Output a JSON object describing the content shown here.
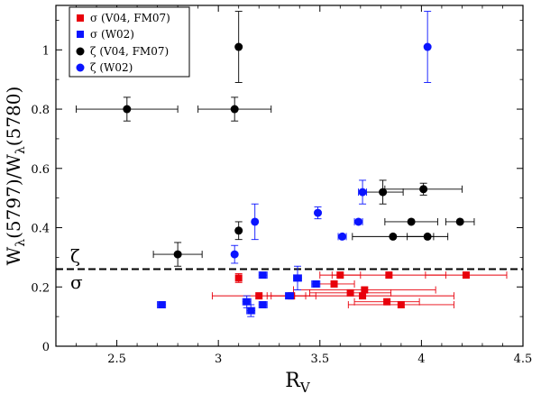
{
  "chart_data": {
    "type": "scatter",
    "xlabel": {
      "main": "R",
      "sub": "V"
    },
    "ylabel": {
      "prefix": "W",
      "sub1": "λ",
      "mid": "(5797)/W",
      "sub2": "λ",
      "suffix": "(5780)"
    },
    "xlim": [
      2.2,
      4.5
    ],
    "ylim": [
      0,
      1.15
    ],
    "xticks": [
      2.5,
      3,
      3.5,
      4,
      4.5
    ],
    "xtick_labels": [
      "2.5",
      "3",
      "3.5",
      "4",
      "4.5"
    ],
    "yticks": [
      0,
      0.2,
      0.4,
      0.6,
      0.8,
      1
    ],
    "ytick_labels": [
      "0",
      "0.2",
      "0.4",
      "0.6",
      "0.8",
      "1"
    ],
    "threshold_line": {
      "y": 0.26,
      "style": "dashed"
    },
    "annotations": [
      {
        "text": "ζ",
        "x": 2.28,
        "y": 0.3
      },
      {
        "text": "σ",
        "x": 2.28,
        "y": 0.21
      }
    ],
    "series": [
      {
        "name": "σ (V04, FM07)",
        "legend_sym": "σ",
        "legend_rest": " (V04, FM07)",
        "marker": "square",
        "color": "#e8000b",
        "points": [
          {
            "x": 3.1,
            "y": 0.23,
            "xerr": 0,
            "yerr": 0.015
          },
          {
            "x": 3.2,
            "y": 0.17,
            "xerr": 0.23,
            "yerr": 0
          },
          {
            "x": 3.36,
            "y": 0.17,
            "xerr": 0.12,
            "yerr": 0
          },
          {
            "x": 3.57,
            "y": 0.21,
            "xerr": 0.1,
            "yerr": 0
          },
          {
            "x": 3.6,
            "y": 0.24,
            "xerr": 0.1,
            "yerr": 0
          },
          {
            "x": 3.65,
            "y": 0.18,
            "xerr": 0.2,
            "yerr": 0
          },
          {
            "x": 3.71,
            "y": 0.17,
            "xerr": 0.45,
            "yerr": 0
          },
          {
            "x": 3.72,
            "y": 0.19,
            "xerr": 0.35,
            "yerr": 0
          },
          {
            "x": 3.84,
            "y": 0.24,
            "xerr": 0.28,
            "yerr": 0
          },
          {
            "x": 3.83,
            "y": 0.15,
            "xerr": 0.16,
            "yerr": 0
          },
          {
            "x": 3.9,
            "y": 0.14,
            "xerr": 0.26,
            "yerr": 0
          },
          {
            "x": 4.22,
            "y": 0.24,
            "xerr": 0.2,
            "yerr": 0
          }
        ]
      },
      {
        "name": "σ (W02)",
        "legend_sym": "σ",
        "legend_rest": " (W02)",
        "marker": "square",
        "color": "#0a14ff",
        "points": [
          {
            "x": 2.72,
            "y": 0.14,
            "xerr": 0.02,
            "yerr": 0
          },
          {
            "x": 3.14,
            "y": 0.15,
            "xerr": 0.02,
            "yerr": 0.02
          },
          {
            "x": 3.16,
            "y": 0.12,
            "xerr": 0.02,
            "yerr": 0.02
          },
          {
            "x": 3.22,
            "y": 0.24,
            "xerr": 0.02,
            "yerr": 0
          },
          {
            "x": 3.22,
            "y": 0.14,
            "xerr": 0.02,
            "yerr": 0
          },
          {
            "x": 3.35,
            "y": 0.17,
            "xerr": 0.02,
            "yerr": 0
          },
          {
            "x": 3.39,
            "y": 0.23,
            "xerr": 0.02,
            "yerr": 0.04
          },
          {
            "x": 3.48,
            "y": 0.21,
            "xerr": 0.02,
            "yerr": 0
          }
        ]
      },
      {
        "name": "ζ (V04, FM07)",
        "legend_sym": "ζ",
        "legend_rest": " (V04, FM07)",
        "marker": "circle",
        "color": "#000000",
        "points": [
          {
            "x": 2.55,
            "y": 0.8,
            "xerr": 0.25,
            "yerr": 0.04
          },
          {
            "x": 2.8,
            "y": 0.31,
            "xerr": 0.12,
            "yerr": 0.04
          },
          {
            "x": 3.08,
            "y": 0.8,
            "xerr": 0.18,
            "yerr": 0.04
          },
          {
            "x": 3.1,
            "y": 1.01,
            "xerr": 0,
            "yerr": 0.12
          },
          {
            "x": 3.1,
            "y": 0.39,
            "xerr": 0,
            "yerr": 0.03
          },
          {
            "x": 3.81,
            "y": 0.52,
            "xerr": 0.1,
            "yerr": 0.04
          },
          {
            "x": 3.86,
            "y": 0.37,
            "xerr": 0.2,
            "yerr": 0
          },
          {
            "x": 3.95,
            "y": 0.42,
            "xerr": 0.13,
            "yerr": 0
          },
          {
            "x": 4.01,
            "y": 0.53,
            "xerr": 0.19,
            "yerr": 0.02
          },
          {
            "x": 4.03,
            "y": 0.37,
            "xerr": 0.1,
            "yerr": 0
          },
          {
            "x": 4.19,
            "y": 0.42,
            "xerr": 0.07,
            "yerr": 0
          }
        ]
      },
      {
        "name": "ζ (W02)",
        "legend_sym": "ζ",
        "legend_rest": " (W02)",
        "marker": "circle",
        "color": "#0a14ff",
        "points": [
          {
            "x": 3.08,
            "y": 0.31,
            "xerr": 0,
            "yerr": 0.03
          },
          {
            "x": 3.18,
            "y": 0.42,
            "xerr": 0,
            "yerr": 0.06
          },
          {
            "x": 3.49,
            "y": 0.45,
            "xerr": 0,
            "yerr": 0.02
          },
          {
            "x": 3.61,
            "y": 0.37,
            "xerr": 0.02,
            "yerr": 0
          },
          {
            "x": 3.69,
            "y": 0.42,
            "xerr": 0.02,
            "yerr": 0
          },
          {
            "x": 3.71,
            "y": 0.52,
            "xerr": 0.02,
            "yerr": 0.04
          },
          {
            "x": 4.03,
            "y": 1.01,
            "xerr": 0,
            "yerr": 0.12
          }
        ]
      }
    ]
  }
}
